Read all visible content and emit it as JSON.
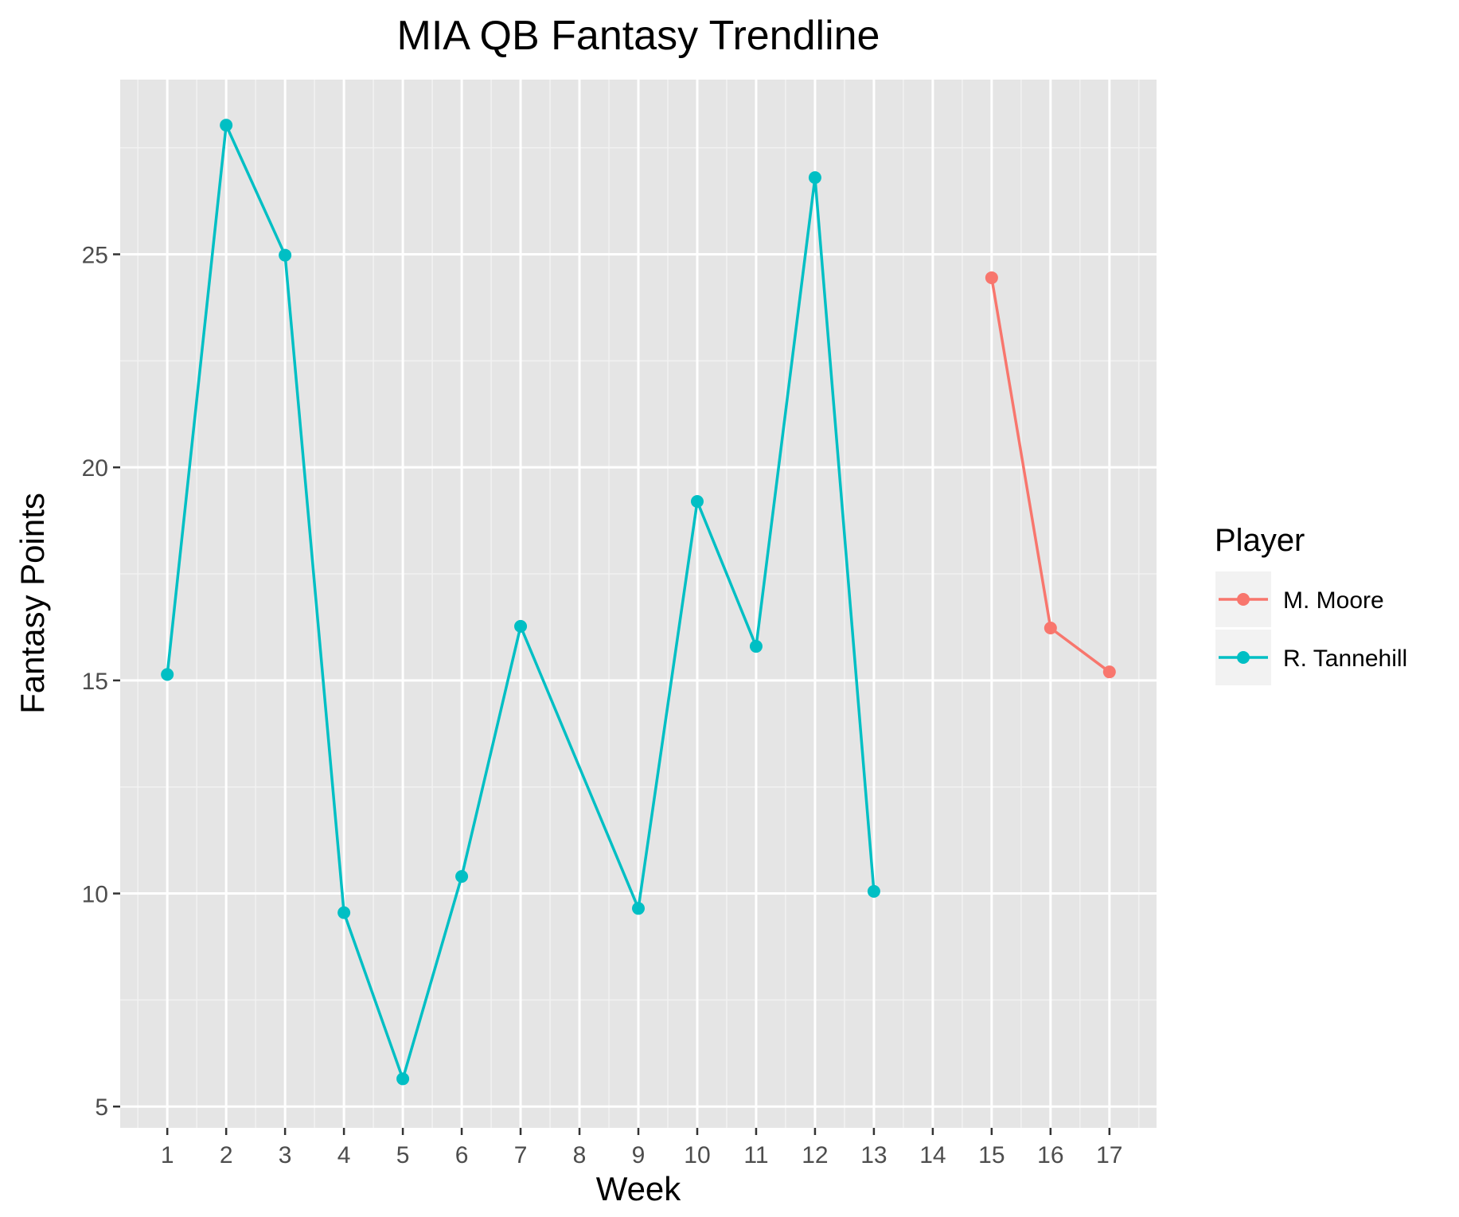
{
  "chart_data": {
    "type": "line",
    "title": "MIA QB Fantasy Trendline",
    "xlabel": "Week",
    "ylabel": "Fantasy Points",
    "x_ticks": [
      "1",
      "2",
      "3",
      "4",
      "5",
      "6",
      "7",
      "8",
      "9",
      "10",
      "11",
      "12",
      "13",
      "14",
      "15",
      "16",
      "17"
    ],
    "y_ticks": [
      "5",
      "10",
      "15",
      "20",
      "25"
    ],
    "xlim": [
      0.2,
      17.8
    ],
    "ylim": [
      4.5,
      29.1
    ],
    "grid": true,
    "legend": {
      "title": "Player",
      "placement": "right"
    },
    "series": [
      {
        "name": "M. Moore",
        "color": "#F8766D",
        "x": [
          15,
          16,
          17
        ],
        "y": [
          24.45,
          16.23,
          15.2
        ]
      },
      {
        "name": "R. Tannehill",
        "color": "#00BFC4",
        "x": [
          1,
          2,
          3,
          4,
          5,
          6,
          7,
          9,
          10,
          11,
          12,
          13
        ],
        "y": [
          15.14,
          28.03,
          24.98,
          9.55,
          5.65,
          10.4,
          16.27,
          9.65,
          19.2,
          15.8,
          26.8,
          10.05
        ]
      }
    ]
  }
}
